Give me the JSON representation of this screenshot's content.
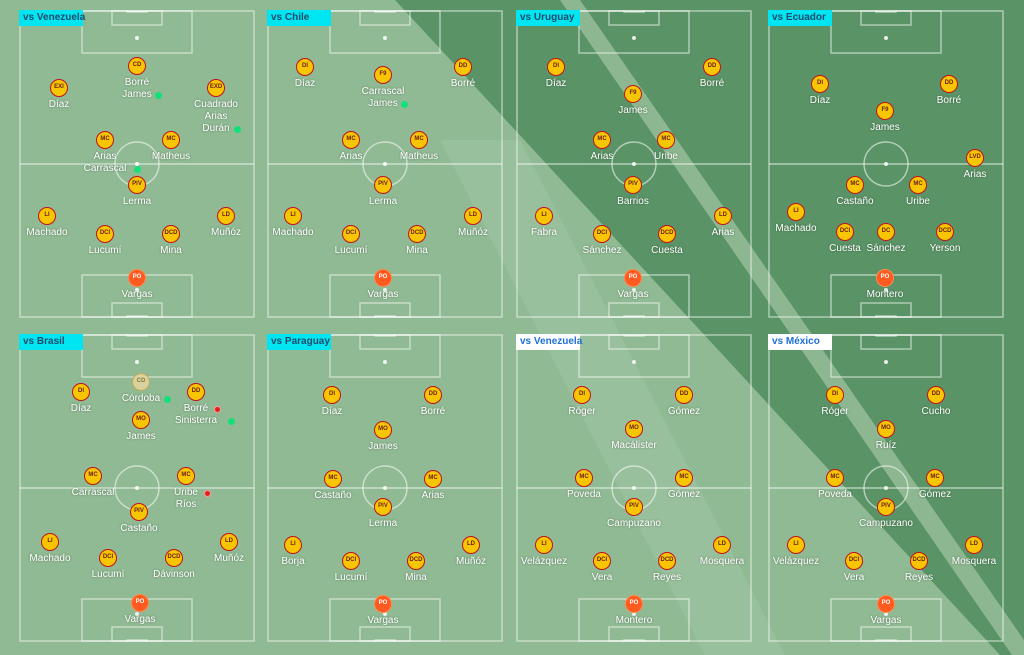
{
  "colors": {
    "label_cyan": "#00e5f2",
    "label_white": "#ffffff",
    "badge_fill": "#f7c600",
    "badge_border": "#c1121f",
    "goalkeeper_fill": "#ff5a1f",
    "substitution_in": "#13e07a",
    "substitution_out": "#e01f1f"
  },
  "lineups": [
    {
      "title": "vs Venezuela",
      "label_style": "cyan",
      "players": [
        {
          "pos": "CD",
          "lines": [
            "Borré",
            "James"
          ],
          "mark": "green"
        },
        {
          "pos": "EXI",
          "lines": [
            "Díaz"
          ]
        },
        {
          "pos": "EXD",
          "lines": [
            "Cuadrado",
            "Arias",
            "Durán"
          ],
          "mark": "green"
        },
        {
          "pos": "MC",
          "lines": [
            "Arias",
            "Carrascal"
          ],
          "mark": "green"
        },
        {
          "pos": "MC",
          "lines": [
            "Matheus"
          ]
        },
        {
          "pos": "PIV",
          "lines": [
            "Lerma"
          ]
        },
        {
          "pos": "LI",
          "lines": [
            "Machado"
          ]
        },
        {
          "pos": "DCI",
          "lines": [
            "Lucumí"
          ]
        },
        {
          "pos": "DCD",
          "lines": [
            "Mina"
          ]
        },
        {
          "pos": "LD",
          "lines": [
            "Muñóz"
          ]
        },
        {
          "pos": "PO",
          "lines": [
            "Vargas"
          ],
          "gk": true
        }
      ]
    },
    {
      "title": "vs Chile",
      "label_style": "cyan",
      "players": [
        {
          "pos": "DI",
          "lines": [
            "Díaz"
          ]
        },
        {
          "pos": "F9",
          "lines": [
            "Carrascal",
            "James"
          ],
          "mark": "green"
        },
        {
          "pos": "DD",
          "lines": [
            "Borré"
          ]
        },
        {
          "pos": "MC",
          "lines": [
            "Arias"
          ]
        },
        {
          "pos": "MC",
          "lines": [
            "Matheus"
          ]
        },
        {
          "pos": "PIV",
          "lines": [
            "Lerma"
          ]
        },
        {
          "pos": "LI",
          "lines": [
            "Machado"
          ]
        },
        {
          "pos": "DCI",
          "lines": [
            "Lucumí"
          ]
        },
        {
          "pos": "DCD",
          "lines": [
            "Mina"
          ]
        },
        {
          "pos": "LD",
          "lines": [
            "Muñóz"
          ]
        },
        {
          "pos": "PO",
          "lines": [
            "Vargas"
          ],
          "gk": true
        }
      ]
    },
    {
      "title": "vs Uruguay",
      "label_style": "cyan",
      "players": [
        {
          "pos": "DI",
          "lines": [
            "Díaz"
          ]
        },
        {
          "pos": "DD",
          "lines": [
            "Borré"
          ]
        },
        {
          "pos": "F9",
          "lines": [
            "James"
          ]
        },
        {
          "pos": "MC",
          "lines": [
            "Arias"
          ]
        },
        {
          "pos": "MC",
          "lines": [
            "Uribe"
          ]
        },
        {
          "pos": "PIV",
          "lines": [
            "Barrios"
          ]
        },
        {
          "pos": "LI",
          "lines": [
            "Fabra"
          ]
        },
        {
          "pos": "DCI",
          "lines": [
            "Sánchez"
          ]
        },
        {
          "pos": "DCD",
          "lines": [
            "Cuesta"
          ]
        },
        {
          "pos": "LD",
          "lines": [
            "Arias"
          ]
        },
        {
          "pos": "PO",
          "lines": [
            "Vargas"
          ],
          "gk": true
        }
      ]
    },
    {
      "title": "vs Ecuador",
      "label_style": "cyan",
      "players": [
        {
          "pos": "DI",
          "lines": [
            "Díaz"
          ]
        },
        {
          "pos": "DD",
          "lines": [
            "Borré"
          ]
        },
        {
          "pos": "F9",
          "lines": [
            "James"
          ]
        },
        {
          "pos": "LVD",
          "lines": [
            "Arias"
          ]
        },
        {
          "pos": "MC",
          "lines": [
            "Castaño"
          ]
        },
        {
          "pos": "MC",
          "lines": [
            "Uribe"
          ]
        },
        {
          "pos": "LI",
          "lines": [
            "Machado"
          ]
        },
        {
          "pos": "DCI",
          "lines": [
            "Cuesta"
          ]
        },
        {
          "pos": "DC",
          "lines": [
            "Sánchez"
          ]
        },
        {
          "pos": "DCD",
          "lines": [
            "Yerson"
          ]
        },
        {
          "pos": "PO",
          "lines": [
            "Montero"
          ],
          "gk": true
        }
      ]
    },
    {
      "title": "vs Brasil",
      "label_style": "cyan",
      "players": [
        {
          "pos": "DI",
          "lines": [
            "Díaz"
          ]
        },
        {
          "pos": "CD",
          "lines": [
            "Córdoba"
          ],
          "mark": "green",
          "ghost": true
        },
        {
          "pos": "DD",
          "lines": [
            "Borré",
            "Sinisterra"
          ],
          "mark": "red",
          "mark2": "green"
        },
        {
          "pos": "MO",
          "lines": [
            "James"
          ]
        },
        {
          "pos": "MC",
          "lines": [
            "Carrascal"
          ]
        },
        {
          "pos": "MC",
          "lines": [
            "Uribe",
            "Ríos"
          ],
          "mark": "red"
        },
        {
          "pos": "PIV",
          "lines": [
            "Castaño"
          ]
        },
        {
          "pos": "LI",
          "lines": [
            "Machado"
          ]
        },
        {
          "pos": "DCI",
          "lines": [
            "Lucumí"
          ]
        },
        {
          "pos": "DCD",
          "lines": [
            "Dávinson"
          ]
        },
        {
          "pos": "LD",
          "lines": [
            "Muñóz"
          ]
        },
        {
          "pos": "PO",
          "lines": [
            "Vargas"
          ],
          "gk": true
        }
      ]
    },
    {
      "title": "vs Paraguay",
      "label_style": "cyan",
      "players": [
        {
          "pos": "DI",
          "lines": [
            "Díaz"
          ]
        },
        {
          "pos": "DD",
          "lines": [
            "Borré"
          ]
        },
        {
          "pos": "MO",
          "lines": [
            "James"
          ]
        },
        {
          "pos": "MC",
          "lines": [
            "Castaño"
          ]
        },
        {
          "pos": "MC",
          "lines": [
            "Arias"
          ]
        },
        {
          "pos": "PIV",
          "lines": [
            "Lerma"
          ]
        },
        {
          "pos": "LI",
          "lines": [
            "Borja"
          ]
        },
        {
          "pos": "DCI",
          "lines": [
            "Lucumí"
          ]
        },
        {
          "pos": "DCD",
          "lines": [
            "Mina"
          ]
        },
        {
          "pos": "LD",
          "lines": [
            "Muñóz"
          ]
        },
        {
          "pos": "PO",
          "lines": [
            "Vargas"
          ],
          "gk": true
        }
      ]
    },
    {
      "title": "vs Venezuela",
      "label_style": "white",
      "players": [
        {
          "pos": "DI",
          "lines": [
            "Róger"
          ]
        },
        {
          "pos": "DD",
          "lines": [
            "Gómez"
          ]
        },
        {
          "pos": "MO",
          "lines": [
            "Macálister"
          ]
        },
        {
          "pos": "MC",
          "lines": [
            "Poveda"
          ]
        },
        {
          "pos": "MC",
          "lines": [
            "Gómez"
          ]
        },
        {
          "pos": "PIV",
          "lines": [
            "Campuzano"
          ]
        },
        {
          "pos": "LI",
          "lines": [
            "Velázquez"
          ]
        },
        {
          "pos": "DCI",
          "lines": [
            "Vera"
          ]
        },
        {
          "pos": "DCD",
          "lines": [
            "Reyes"
          ]
        },
        {
          "pos": "LD",
          "lines": [
            "Mosquera"
          ]
        },
        {
          "pos": "PO",
          "lines": [
            "Montero"
          ],
          "gk": true
        }
      ]
    },
    {
      "title": "vs México",
      "label_style": "white",
      "players": [
        {
          "pos": "DI",
          "lines": [
            "Róger"
          ]
        },
        {
          "pos": "DD",
          "lines": [
            "Cucho"
          ]
        },
        {
          "pos": "MO",
          "lines": [
            "Ruíz"
          ]
        },
        {
          "pos": "MC",
          "lines": [
            "Poveda"
          ]
        },
        {
          "pos": "MC",
          "lines": [
            "Gómez"
          ]
        },
        {
          "pos": "PIV",
          "lines": [
            "Campuzano"
          ]
        },
        {
          "pos": "LI",
          "lines": [
            "Velázquez"
          ]
        },
        {
          "pos": "DCI",
          "lines": [
            "Vera"
          ]
        },
        {
          "pos": "DCD",
          "lines": [
            "Reyes"
          ]
        },
        {
          "pos": "LD",
          "lines": [
            "Mosquera"
          ]
        },
        {
          "pos": "PO",
          "lines": [
            "Vargas"
          ],
          "gk": true
        }
      ]
    }
  ]
}
